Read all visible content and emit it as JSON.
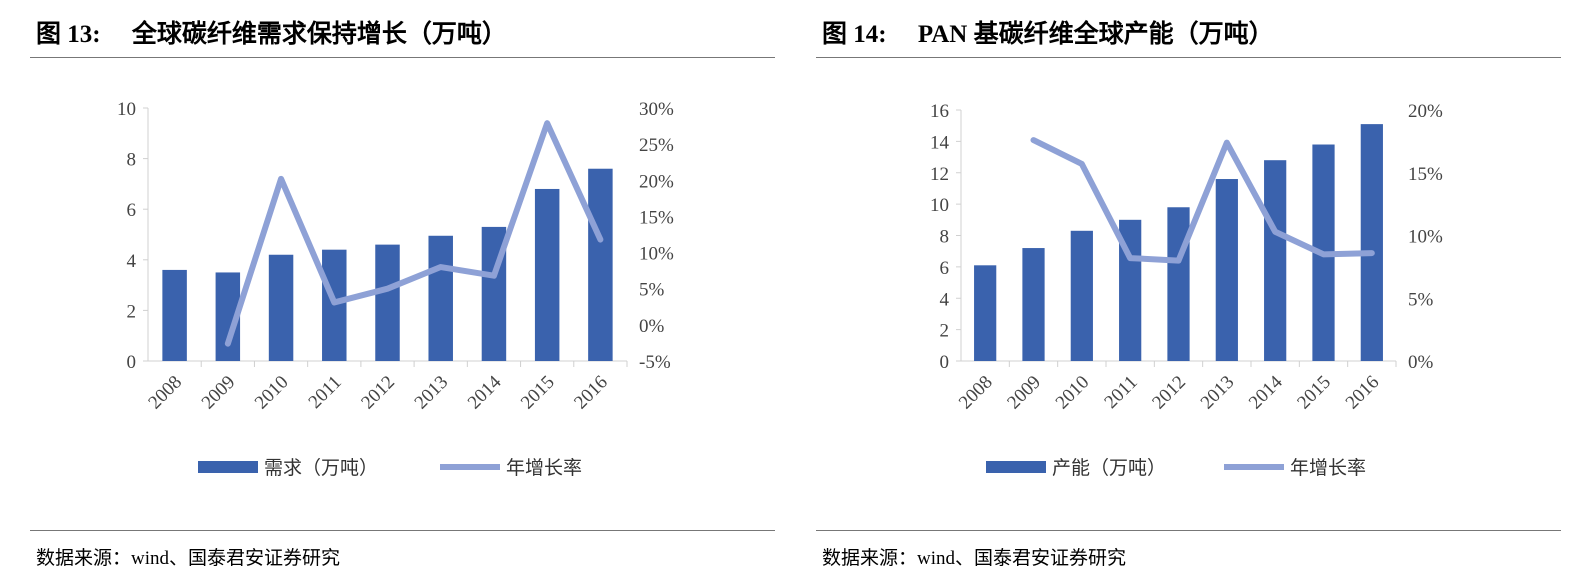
{
  "colors": {
    "bar": "#3a62ad",
    "line": "#8ea1d6",
    "axis": "#d0d0d0"
  },
  "panels": [
    {
      "title": "图 13:     全球碳纤维需求保持增长（万吨）",
      "source": "数据来源：wind、国泰君安证券研究"
    },
    {
      "title": "图 14:     PAN 基碳纤维全球产能（万吨）",
      "source": "数据来源：wind、国泰君安证券研究"
    }
  ],
  "chart_data": [
    {
      "type": "bar+line",
      "categories": [
        "2008",
        "2009",
        "2010",
        "2011",
        "2012",
        "2013",
        "2014",
        "2015",
        "2016"
      ],
      "left_axis": {
        "ylim": [
          0,
          10
        ],
        "ticks": [
          "0",
          "2",
          "4",
          "6",
          "8",
          "10"
        ]
      },
      "right_axis": {
        "ylim": [
          -5,
          30
        ],
        "ticks": [
          "-5%",
          "0%",
          "5%",
          "10%",
          "15%",
          "20%",
          "25%",
          "30%"
        ]
      },
      "series": [
        {
          "name": "需求（万吨）",
          "type": "bar",
          "axis": "left",
          "values": [
            3.6,
            3.5,
            4.2,
            4.4,
            4.6,
            4.95,
            5.3,
            6.8,
            7.6
          ]
        },
        {
          "name": "年增长率",
          "type": "line",
          "axis": "right",
          "values": [
            null,
            -2.6,
            20.2,
            3.1,
            5.0,
            8.0,
            6.8,
            27.9,
            11.8
          ]
        }
      ],
      "legend": "bottom",
      "grid": false
    },
    {
      "type": "bar+line",
      "categories": [
        "2008",
        "2009",
        "2010",
        "2011",
        "2012",
        "2013",
        "2014",
        "2015",
        "2016"
      ],
      "left_axis": {
        "ylim": [
          0,
          16
        ],
        "ticks": [
          "0",
          "2",
          "4",
          "6",
          "8",
          "10",
          "12",
          "14",
          "16"
        ]
      },
      "right_axis": {
        "ylim": [
          0,
          20
        ],
        "ticks": [
          "0%",
          "5%",
          "10%",
          "15%",
          "20%"
        ]
      },
      "series": [
        {
          "name": "产能（万吨）",
          "type": "bar",
          "axis": "left",
          "values": [
            6.1,
            7.2,
            8.3,
            9.0,
            9.8,
            11.6,
            12.8,
            13.8,
            15.1
          ]
        },
        {
          "name": "年增长率",
          "type": "line",
          "axis": "right",
          "values": [
            null,
            17.6,
            15.7,
            8.2,
            8.0,
            17.4,
            10.3,
            8.5,
            8.6
          ]
        }
      ],
      "legend": "bottom",
      "grid": false
    }
  ]
}
